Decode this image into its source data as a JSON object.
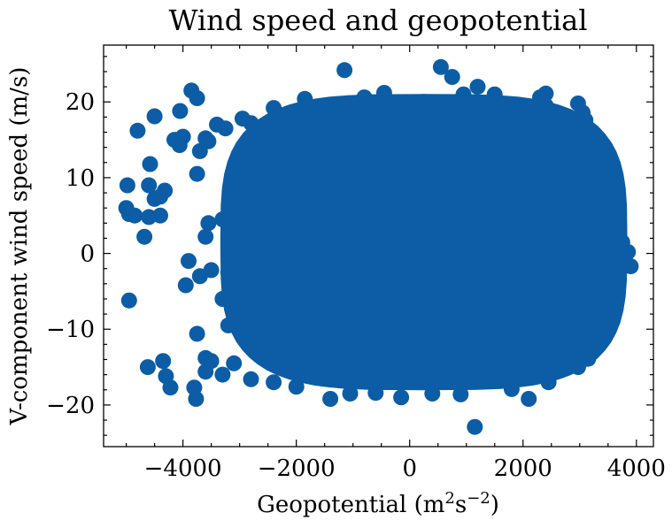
{
  "chart_data": {
    "type": "scatter",
    "title": "Wind speed and geopotential",
    "xlabel_parts": {
      "base": "Geopotential (m",
      "sup1": "2",
      "mid": "s",
      "sup2": "−2",
      "end": ")"
    },
    "ylabel": "V-component wind speed (m/s)",
    "xlim": [
      -5400,
      4300
    ],
    "ylim": [
      -25.5,
      27.5
    ],
    "xticks": [
      -4000,
      -2000,
      0,
      2000,
      4000
    ],
    "xtick_labels": [
      "−4000",
      "−2000",
      "0",
      "2000",
      "4000"
    ],
    "yticks": [
      -20,
      -10,
      0,
      10,
      20
    ],
    "ytick_labels": [
      "−20",
      "−10",
      "0",
      "10",
      "20"
    ],
    "x_minor_step": 500,
    "y_minor_step": 2,
    "grid": false,
    "color": "#0c5da5",
    "dense_region": {
      "x": [
        -3200,
        3700
      ],
      "y": [
        -17,
        20
      ]
    },
    "points": [
      {
        "x": -4980,
        "y": 9.0
      },
      {
        "x": -5000,
        "y": 6.0
      },
      {
        "x": -4950,
        "y": 5.2
      },
      {
        "x": -4850,
        "y": 5.0
      },
      {
        "x": -4800,
        "y": 16.2
      },
      {
        "x": -4680,
        "y": 2.2
      },
      {
        "x": -4580,
        "y": 11.8
      },
      {
        "x": -4600,
        "y": 4.8
      },
      {
        "x": -4500,
        "y": 18.1
      },
      {
        "x": -4600,
        "y": 9.0
      },
      {
        "x": -4500,
        "y": 7.2
      },
      {
        "x": -4400,
        "y": 5.0
      },
      {
        "x": -4320,
        "y": 8.3
      },
      {
        "x": -4400,
        "y": 7.5
      },
      {
        "x": -4150,
        "y": 15.0
      },
      {
        "x": -4060,
        "y": 14.3
      },
      {
        "x": -4000,
        "y": 15.4
      },
      {
        "x": -4050,
        "y": 18.8
      },
      {
        "x": -3850,
        "y": 21.5
      },
      {
        "x": -3750,
        "y": 20.5
      },
      {
        "x": -3700,
        "y": 13.5
      },
      {
        "x": -3750,
        "y": 10.5
      },
      {
        "x": -3600,
        "y": 15.2
      },
      {
        "x": -3550,
        "y": 14.8
      },
      {
        "x": -3550,
        "y": 4.0
      },
      {
        "x": -3600,
        "y": 2.2
      },
      {
        "x": -3900,
        "y": -1.0
      },
      {
        "x": -3950,
        "y": -4.2
      },
      {
        "x": -3700,
        "y": -3.0
      },
      {
        "x": -3500,
        "y": -2.2
      },
      {
        "x": -3750,
        "y": -10.6
      },
      {
        "x": -3600,
        "y": -13.8
      },
      {
        "x": -3500,
        "y": -14.2
      },
      {
        "x": -3600,
        "y": -15.6
      },
      {
        "x": -3800,
        "y": -17.7
      },
      {
        "x": -3770,
        "y": -19.2
      },
      {
        "x": -4950,
        "y": -6.2
      },
      {
        "x": -4620,
        "y": -15.0
      },
      {
        "x": -4350,
        "y": -14.2
      },
      {
        "x": -4300,
        "y": -16.2
      },
      {
        "x": -4220,
        "y": -17.7
      },
      {
        "x": -3300,
        "y": -16.0
      },
      {
        "x": -3400,
        "y": 17.0
      },
      {
        "x": -3250,
        "y": 16.5
      },
      {
        "x": -3300,
        "y": 4.5
      },
      {
        "x": -3150,
        "y": 5.2
      },
      {
        "x": -3200,
        "y": -2.5
      },
      {
        "x": -3300,
        "y": -6.0
      },
      {
        "x": -3200,
        "y": -9.5
      },
      {
        "x": -3100,
        "y": 0.5
      },
      {
        "x": -2950,
        "y": 17.8
      },
      {
        "x": -2800,
        "y": 17.2
      },
      {
        "x": -2400,
        "y": 19.2
      },
      {
        "x": -1850,
        "y": 20.4
      },
      {
        "x": -1600,
        "y": 19.0
      },
      {
        "x": -1150,
        "y": 24.2
      },
      {
        "x": -800,
        "y": 20.6
      },
      {
        "x": -450,
        "y": 21.2
      },
      {
        "x": -200,
        "y": 19.6
      },
      {
        "x": 250,
        "y": 20.0
      },
      {
        "x": 550,
        "y": 24.6
      },
      {
        "x": 750,
        "y": 23.3
      },
      {
        "x": 950,
        "y": 21.0
      },
      {
        "x": 1200,
        "y": 22.0
      },
      {
        "x": 1500,
        "y": 21.0
      },
      {
        "x": 2300,
        "y": 20.6
      },
      {
        "x": 2400,
        "y": 21.1
      },
      {
        "x": 2400,
        "y": 19.5
      },
      {
        "x": 2700,
        "y": 17.4
      },
      {
        "x": 2970,
        "y": 19.8
      },
      {
        "x": 3050,
        "y": 18.6
      },
      {
        "x": 3100,
        "y": 17.6
      },
      {
        "x": 3200,
        "y": 14.3
      },
      {
        "x": 3150,
        "y": 12.0
      },
      {
        "x": 3350,
        "y": 10.2
      },
      {
        "x": 3450,
        "y": 8.0
      },
      {
        "x": 3550,
        "y": 6.0
      },
      {
        "x": 3600,
        "y": 4.6
      },
      {
        "x": 3750,
        "y": 1.5
      },
      {
        "x": 3850,
        "y": 0.2
      },
      {
        "x": 3900,
        "y": -1.7
      },
      {
        "x": 3800,
        "y": -0.8
      },
      {
        "x": 3650,
        "y": -3.8
      },
      {
        "x": 3550,
        "y": -5.5
      },
      {
        "x": 3450,
        "y": -8.2
      },
      {
        "x": 3250,
        "y": -11.5
      },
      {
        "x": 3150,
        "y": -13.9
      },
      {
        "x": 2970,
        "y": -15.0
      },
      {
        "x": 2600,
        "y": -15.2
      },
      {
        "x": 2450,
        "y": -17.0
      },
      {
        "x": 2100,
        "y": -19.2
      },
      {
        "x": 1800,
        "y": -17.9
      },
      {
        "x": 1150,
        "y": -22.9
      },
      {
        "x": 900,
        "y": -18.6
      },
      {
        "x": 400,
        "y": -18.5
      },
      {
        "x": -150,
        "y": -19.0
      },
      {
        "x": -600,
        "y": -18.4
      },
      {
        "x": -1050,
        "y": -18.5
      },
      {
        "x": -1400,
        "y": -19.2
      },
      {
        "x": -2000,
        "y": -17.6
      },
      {
        "x": -2400,
        "y": -17.0
      },
      {
        "x": -2800,
        "y": -16.6
      },
      {
        "x": -3100,
        "y": -14.5
      }
    ]
  }
}
